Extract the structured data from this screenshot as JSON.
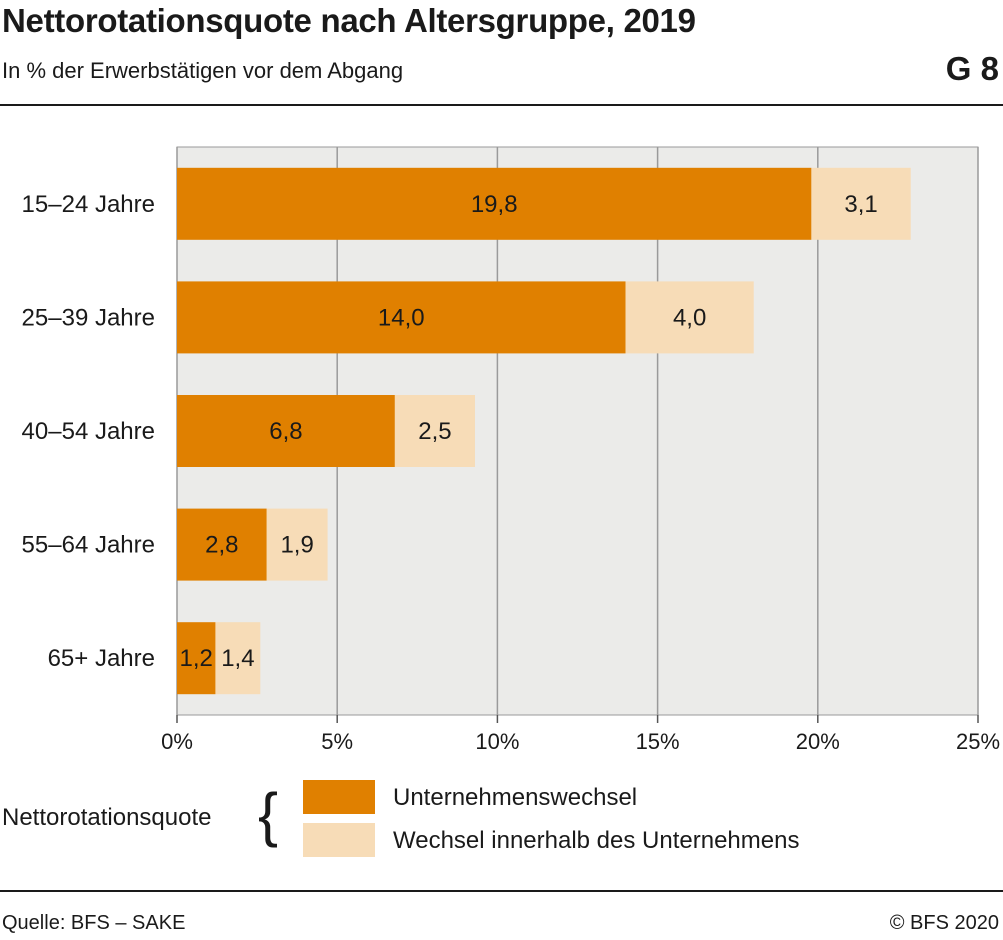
{
  "header": {
    "title": "Nettorotationsquote nach Altersgruppe, 2019",
    "subtitle": "In % der Erwerbstätigen vor dem Abgang",
    "graph_number": "G 8"
  },
  "footer": {
    "source": "Quelle: BFS – SAKE",
    "copyright": "© BFS 2020"
  },
  "legend": {
    "title": "Nettorotationsquote",
    "brace": "{",
    "items": [
      {
        "label": "Unternehmenswechsel",
        "color": "#e08000"
      },
      {
        "label": "Wechsel innerhalb des Unternehmens",
        "color": "#f7dcb7"
      }
    ]
  },
  "chart_data": {
    "type": "bar",
    "orientation": "horizontal",
    "stacked": true,
    "categories": [
      "15–24 Jahre",
      "25–39 Jahre",
      "40–54 Jahre",
      "55–64 Jahre",
      "65+ Jahre"
    ],
    "series": [
      {
        "name": "Unternehmenswechsel",
        "values": [
          19.8,
          14.0,
          6.8,
          2.8,
          1.2
        ],
        "labels": [
          "19,8",
          "14,0",
          "6,8",
          "2,8",
          "1,2"
        ],
        "color": "#e08000"
      },
      {
        "name": "Wechsel innerhalb des Unternehmens",
        "values": [
          3.1,
          4.0,
          2.5,
          1.9,
          1.4
        ],
        "labels": [
          "3,1",
          "4,0",
          "2,5",
          "1,9",
          "1,4"
        ],
        "color": "#f7dcb7"
      }
    ],
    "xlim": [
      0,
      25
    ],
    "xticks": [
      0,
      5,
      10,
      15,
      20,
      25
    ],
    "xtick_labels": [
      "0%",
      "5%",
      "10%",
      "15%",
      "20%",
      "25%"
    ],
    "grid": true,
    "plot_background": "#ebebe9",
    "legend_position": "bottom"
  }
}
